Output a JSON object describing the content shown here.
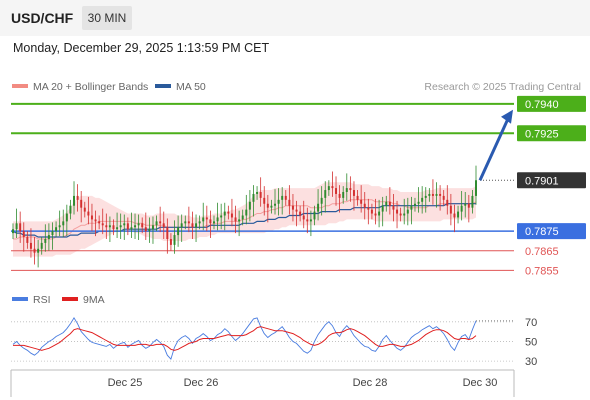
{
  "header": {
    "symbol": "USD/CHF",
    "timeframe": "30 MIN"
  },
  "timestamp": "Monday, December 29, 2025 1:13:59 PM CET",
  "legend": {
    "items": [
      {
        "label": "MA 20 + Bollinger Bands",
        "color": "#f28b82"
      },
      {
        "label": "MA 50",
        "color": "#2a5a9b"
      }
    ],
    "credit": "Research © 2025 Trading Central"
  },
  "colors": {
    "bull": "#2e8b2e",
    "bear": "#d32f2f",
    "resistance": "#4caf1a",
    "support_main": "#3a6fe0",
    "support": "#e05555",
    "price": "#333333",
    "arrow": "#2a5ab0"
  },
  "chart_data": [
    {
      "type": "line",
      "title": "USD/CHF 30 MIN",
      "x_ticks": [
        "Dec 25",
        "Dec 26",
        "Dec 28",
        "Dec 30"
      ],
      "ylim": [
        0.7847,
        0.7943
      ],
      "close": [
        0.7876,
        0.7879,
        0.7875,
        0.7872,
        0.7869,
        0.7866,
        0.7864,
        0.7866,
        0.7869,
        0.7871,
        0.7873,
        0.7875,
        0.7877,
        0.7878,
        0.788,
        0.7884,
        0.7888,
        0.7893,
        0.7891,
        0.7887,
        0.7885,
        0.7883,
        0.7881,
        0.788,
        0.7879,
        0.7878,
        0.7877,
        0.7878,
        0.7876,
        0.7877,
        0.7878,
        0.7879,
        0.7876,
        0.7877,
        0.7878,
        0.7879,
        0.7877,
        0.7875,
        0.7876,
        0.7878,
        0.788,
        0.7879,
        0.7877,
        0.7871,
        0.7868,
        0.7873,
        0.7877,
        0.7879,
        0.788,
        0.7879,
        0.7877,
        0.7879,
        0.788,
        0.7882,
        0.7881,
        0.7879,
        0.788,
        0.7882,
        0.7883,
        0.7885,
        0.7884,
        0.7882,
        0.788,
        0.7881,
        0.7883,
        0.7886,
        0.789,
        0.7894,
        0.7895,
        0.7892,
        0.7889,
        0.7887,
        0.7888,
        0.7889,
        0.7891,
        0.7893,
        0.7891,
        0.7888,
        0.7886,
        0.7885,
        0.7883,
        0.7881,
        0.788,
        0.7881,
        0.7885,
        0.7889,
        0.7892,
        0.7896,
        0.7898,
        0.7897,
        0.7894,
        0.7892,
        0.7895,
        0.7897,
        0.7896,
        0.7893,
        0.7891,
        0.7889,
        0.7887,
        0.7886,
        0.7884,
        0.7883,
        0.7885,
        0.7888,
        0.789,
        0.7888,
        0.7886,
        0.7884,
        0.7883,
        0.7884,
        0.7886,
        0.7888,
        0.7889,
        0.789,
        0.7892,
        0.7893,
        0.7894,
        0.7893,
        0.7894,
        0.7893,
        0.7891,
        0.7888,
        0.7884,
        0.7882,
        0.7885,
        0.7888,
        0.7889,
        0.7887,
        0.7893,
        0.7901
      ],
      "ma20_bb_mid": [
        0.7871,
        0.7871,
        0.7872,
        0.7872,
        0.7872,
        0.7872,
        0.7872,
        0.7871,
        0.7871,
        0.7871,
        0.7871,
        0.7871,
        0.7872,
        0.7872,
        0.7872,
        0.7873,
        0.7874,
        0.7876,
        0.7877,
        0.7878,
        0.7878,
        0.7879,
        0.7879,
        0.7879,
        0.788,
        0.788,
        0.788,
        0.788,
        0.788,
        0.788,
        0.788,
        0.788,
        0.788,
        0.788,
        0.7879,
        0.7879,
        0.7879,
        0.7878,
        0.7878,
        0.7878,
        0.7878,
        0.7878,
        0.7878,
        0.7877,
        0.7877,
        0.7877,
        0.7877,
        0.7877,
        0.7877,
        0.7877,
        0.7877,
        0.7877,
        0.7877,
        0.7877,
        0.7878,
        0.7878,
        0.7879,
        0.7879,
        0.7879,
        0.788,
        0.788,
        0.788,
        0.788,
        0.788,
        0.7881,
        0.7881,
        0.7882,
        0.7883,
        0.7884,
        0.7884,
        0.7885,
        0.7885,
        0.7886,
        0.7886,
        0.7887,
        0.7887,
        0.7888,
        0.7888,
        0.7888,
        0.7888,
        0.7888,
        0.7888,
        0.7888,
        0.7887,
        0.7887,
        0.7887,
        0.7887,
        0.7888,
        0.7888,
        0.7889,
        0.7889,
        0.7889,
        0.789,
        0.789,
        0.7891,
        0.7891,
        0.7891,
        0.7891,
        0.7891,
        0.7891,
        0.7891,
        0.789,
        0.789,
        0.789,
        0.789,
        0.789,
        0.7889,
        0.7889,
        0.7888,
        0.7888,
        0.7887,
        0.7887,
        0.7887,
        0.7887,
        0.7887,
        0.7887,
        0.7888,
        0.7888,
        0.7888,
        0.7889,
        0.7889,
        0.7889,
        0.7889,
        0.7889,
        0.7889,
        0.7889,
        0.7889,
        0.7889,
        0.7889,
        0.789
      ],
      "bb_upper": [
        0.788,
        0.788,
        0.788,
        0.788,
        0.788,
        0.788,
        0.788,
        0.788,
        0.788,
        0.788,
        0.788,
        0.788,
        0.7881,
        0.7882,
        0.7883,
        0.7885,
        0.7887,
        0.789,
        0.7892,
        0.7893,
        0.7893,
        0.7893,
        0.7893,
        0.7892,
        0.7892,
        0.7891,
        0.789,
        0.7889,
        0.7888,
        0.7887,
        0.7886,
        0.7885,
        0.7884,
        0.7884,
        0.7884,
        0.7884,
        0.7884,
        0.7883,
        0.7883,
        0.7883,
        0.7884,
        0.7884,
        0.7884,
        0.7884,
        0.7884,
        0.7884,
        0.7883,
        0.7883,
        0.7883,
        0.7883,
        0.7882,
        0.7882,
        0.7882,
        0.7883,
        0.7883,
        0.7883,
        0.7884,
        0.7884,
        0.7884,
        0.7885,
        0.7885,
        0.7886,
        0.7886,
        0.7887,
        0.7888,
        0.7889,
        0.7891,
        0.7893,
        0.7895,
        0.7896,
        0.7896,
        0.7896,
        0.7896,
        0.7897,
        0.7897,
        0.7897,
        0.7897,
        0.7897,
        0.7897,
        0.7897,
        0.7897,
        0.7897,
        0.7897,
        0.7897,
        0.7897,
        0.7898,
        0.7899,
        0.79,
        0.79,
        0.79,
        0.79,
        0.79,
        0.79,
        0.79,
        0.79,
        0.7899,
        0.7899,
        0.7899,
        0.7899,
        0.7899,
        0.7898,
        0.7898,
        0.7898,
        0.7897,
        0.7897,
        0.7897,
        0.7896,
        0.7896,
        0.7895,
        0.7895,
        0.7895,
        0.7895,
        0.7895,
        0.7895,
        0.7895,
        0.7896,
        0.7896,
        0.7896,
        0.7897,
        0.7897,
        0.7897,
        0.7897,
        0.7897,
        0.7897,
        0.7897,
        0.7897,
        0.7897,
        0.7897,
        0.7897,
        0.7898
      ],
      "bb_lower": [
        0.7862,
        0.7862,
        0.7862,
        0.7862,
        0.7862,
        0.7862,
        0.7862,
        0.7862,
        0.7862,
        0.7862,
        0.7862,
        0.7862,
        0.7863,
        0.7863,
        0.7863,
        0.7863,
        0.7863,
        0.7864,
        0.7865,
        0.7866,
        0.7866,
        0.7867,
        0.7868,
        0.7869,
        0.787,
        0.7871,
        0.7872,
        0.7873,
        0.7874,
        0.7875,
        0.7875,
        0.7875,
        0.7875,
        0.7875,
        0.7874,
        0.7874,
        0.7873,
        0.7872,
        0.7872,
        0.7871,
        0.7871,
        0.7871,
        0.787,
        0.787,
        0.787,
        0.787,
        0.787,
        0.787,
        0.787,
        0.7871,
        0.7871,
        0.7871,
        0.7872,
        0.7872,
        0.7872,
        0.7873,
        0.7873,
        0.7874,
        0.7874,
        0.7874,
        0.7874,
        0.7874,
        0.7874,
        0.7874,
        0.7874,
        0.7874,
        0.7874,
        0.7874,
        0.7874,
        0.7874,
        0.7874,
        0.7875,
        0.7875,
        0.7876,
        0.7876,
        0.7877,
        0.7877,
        0.7878,
        0.7878,
        0.7878,
        0.7878,
        0.7878,
        0.7878,
        0.7878,
        0.7878,
        0.7878,
        0.7878,
        0.7878,
        0.7879,
        0.7879,
        0.7879,
        0.788,
        0.788,
        0.7881,
        0.7881,
        0.7881,
        0.7881,
        0.7881,
        0.7881,
        0.7881,
        0.7881,
        0.788,
        0.788,
        0.788,
        0.788,
        0.788,
        0.788,
        0.788,
        0.788,
        0.788,
        0.788,
        0.788,
        0.788,
        0.788,
        0.788,
        0.788,
        0.788,
        0.788,
        0.788,
        0.788,
        0.7881,
        0.7881,
        0.7881,
        0.7881,
        0.7881,
        0.7881,
        0.7881,
        0.7881,
        0.7881,
        0.7882
      ],
      "ma50": [
        0.7875,
        0.7874,
        0.7874,
        0.7873,
        0.7873,
        0.7873,
        0.7873,
        0.7872,
        0.7872,
        0.7872,
        0.7872,
        0.7872,
        0.7872,
        0.7872,
        0.7872,
        0.7872,
        0.7873,
        0.7873,
        0.7873,
        0.7874,
        0.7874,
        0.7874,
        0.7874,
        0.7874,
        0.7875,
        0.7875,
        0.7875,
        0.7875,
        0.7875,
        0.7875,
        0.7875,
        0.7876,
        0.7876,
        0.7876,
        0.7876,
        0.7876,
        0.7876,
        0.7876,
        0.7876,
        0.7876,
        0.7876,
        0.7877,
        0.7877,
        0.7877,
        0.7877,
        0.7877,
        0.7877,
        0.7877,
        0.7877,
        0.7877,
        0.7877,
        0.7877,
        0.7877,
        0.7877,
        0.7877,
        0.7878,
        0.7878,
        0.7878,
        0.7878,
        0.7878,
        0.7878,
        0.7878,
        0.7878,
        0.7878,
        0.7879,
        0.7879,
        0.7879,
        0.7879,
        0.788,
        0.788,
        0.788,
        0.7881,
        0.7881,
        0.7881,
        0.7882,
        0.7882,
        0.7882,
        0.7883,
        0.7883,
        0.7883,
        0.7883,
        0.7884,
        0.7884,
        0.7884,
        0.7884,
        0.7884,
        0.7885,
        0.7885,
        0.7885,
        0.7885,
        0.7885,
        0.7886,
        0.7886,
        0.7886,
        0.7886,
        0.7887,
        0.7887,
        0.7887,
        0.7887,
        0.7887,
        0.7887,
        0.7887,
        0.7887,
        0.7888,
        0.7888,
        0.7888,
        0.7888,
        0.7888,
        0.7888,
        0.7888,
        0.7888,
        0.7888,
        0.7888,
        0.7888,
        0.7888,
        0.7888,
        0.7888,
        0.7888,
        0.7888,
        0.7888,
        0.7888,
        0.7889,
        0.7889,
        0.7889,
        0.7889,
        0.7889,
        0.7889,
        0.7889,
        0.7889,
        0.7889
      ],
      "levels": [
        {
          "value": "0.7940",
          "kind": "resistance"
        },
        {
          "value": "0.7925",
          "kind": "resistance"
        },
        {
          "value": "0.7901",
          "kind": "price"
        },
        {
          "value": "0.7875",
          "kind": "pivot"
        },
        {
          "value": "0.7865",
          "kind": "support"
        },
        {
          "value": "0.7855",
          "kind": "support"
        }
      ],
      "target_from": 0.7901,
      "target_to": 0.7937
    },
    {
      "type": "line",
      "title": "RSI",
      "legend": [
        "RSI",
        "9MA"
      ],
      "ylim": [
        25,
        80
      ],
      "y_ticks": [
        "70",
        "50",
        "30"
      ],
      "rsi": [
        47,
        50,
        46,
        43,
        41,
        38,
        36,
        39,
        44,
        47,
        50,
        52,
        55,
        57,
        59,
        63,
        68,
        74,
        68,
        60,
        56,
        52,
        49,
        48,
        47,
        46,
        45,
        47,
        43,
        46,
        48,
        49,
        44,
        47,
        49,
        51,
        46,
        43,
        45,
        49,
        52,
        49,
        45,
        36,
        32,
        44,
        51,
        54,
        56,
        53,
        48,
        53,
        55,
        58,
        55,
        51,
        53,
        57,
        59,
        63,
        60,
        55,
        51,
        54,
        58,
        63,
        68,
        73,
        74,
        65,
        58,
        54,
        57,
        59,
        62,
        65,
        60,
        54,
        50,
        48,
        44,
        40,
        38,
        41,
        50,
        57,
        62,
        67,
        70,
        66,
        59,
        55,
        62,
        66,
        62,
        56,
        52,
        48,
        45,
        44,
        41,
        40,
        45,
        52,
        56,
        51,
        47,
        43,
        41,
        44,
        49,
        54,
        57,
        59,
        62,
        64,
        66,
        63,
        65,
        62,
        58,
        52,
        45,
        41,
        49,
        55,
        57,
        52,
        62,
        71
      ],
      "rsi_ma9": [
        46,
        46,
        46,
        46,
        45,
        44,
        43,
        42,
        41,
        42,
        43,
        45,
        47,
        49,
        52,
        55,
        58,
        62,
        63,
        62,
        61,
        60,
        59,
        57,
        55,
        53,
        51,
        49,
        47,
        46,
        46,
        46,
        46,
        46,
        46,
        47,
        47,
        47,
        46,
        46,
        47,
        47,
        47,
        45,
        42,
        41,
        42,
        44,
        46,
        48,
        49,
        50,
        52,
        53,
        53,
        53,
        53,
        54,
        55,
        56,
        57,
        56,
        56,
        56,
        56,
        57,
        59,
        61,
        64,
        65,
        64,
        63,
        62,
        61,
        61,
        61,
        60,
        59,
        58,
        56,
        54,
        51,
        49,
        47,
        46,
        47,
        49,
        52,
        56,
        58,
        59,
        59,
        60,
        62,
        63,
        62,
        60,
        58,
        56,
        53,
        50,
        47,
        45,
        45,
        46,
        47,
        47,
        46,
        45,
        45,
        46,
        47,
        49,
        51,
        54,
        57,
        59,
        61,
        62,
        62,
        61,
        59,
        56,
        53,
        52,
        53,
        53,
        52,
        53,
        56
      ]
    }
  ]
}
